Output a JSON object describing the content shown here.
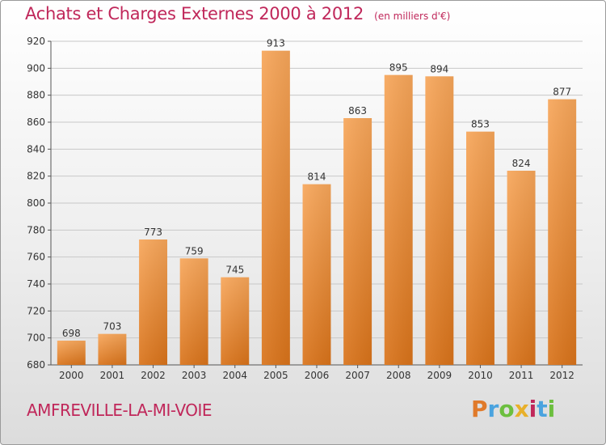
{
  "chart_data": {
    "type": "bar",
    "title": "Achats et Charges Externes 2000 à 2012",
    "subtitle": "(en milliers d'€)",
    "categories": [
      "2000",
      "2001",
      "2002",
      "2003",
      "2004",
      "2005",
      "2006",
      "2007",
      "2008",
      "2009",
      "2010",
      "2011",
      "2012"
    ],
    "values": [
      698,
      703,
      773,
      759,
      745,
      913,
      814,
      863,
      895,
      894,
      853,
      824,
      877
    ],
    "ylim": [
      680,
      920
    ],
    "yticks": [
      680,
      700,
      720,
      740,
      760,
      780,
      800,
      820,
      840,
      860,
      880,
      900,
      920
    ],
    "xlabel": "",
    "ylabel": "",
    "grid": true,
    "legend": "none",
    "bar_color_top": "#f7a65a",
    "bar_color_bottom": "#d9731a"
  },
  "footer": {
    "place_name": "AMFREVILLE-LA-MI-VOIE",
    "brand": [
      "P",
      "r",
      "o",
      "x",
      "i",
      "t",
      "i"
    ],
    "brand_colors": [
      "#e07a2a",
      "#4aa3df",
      "#6cbf3f",
      "#e8b02a",
      "#c0275a",
      "#4aa3df",
      "#6cbf3f"
    ]
  },
  "colors": {
    "title": "#c0275a",
    "grid": "#c8c8c8",
    "axis": "#555555"
  }
}
